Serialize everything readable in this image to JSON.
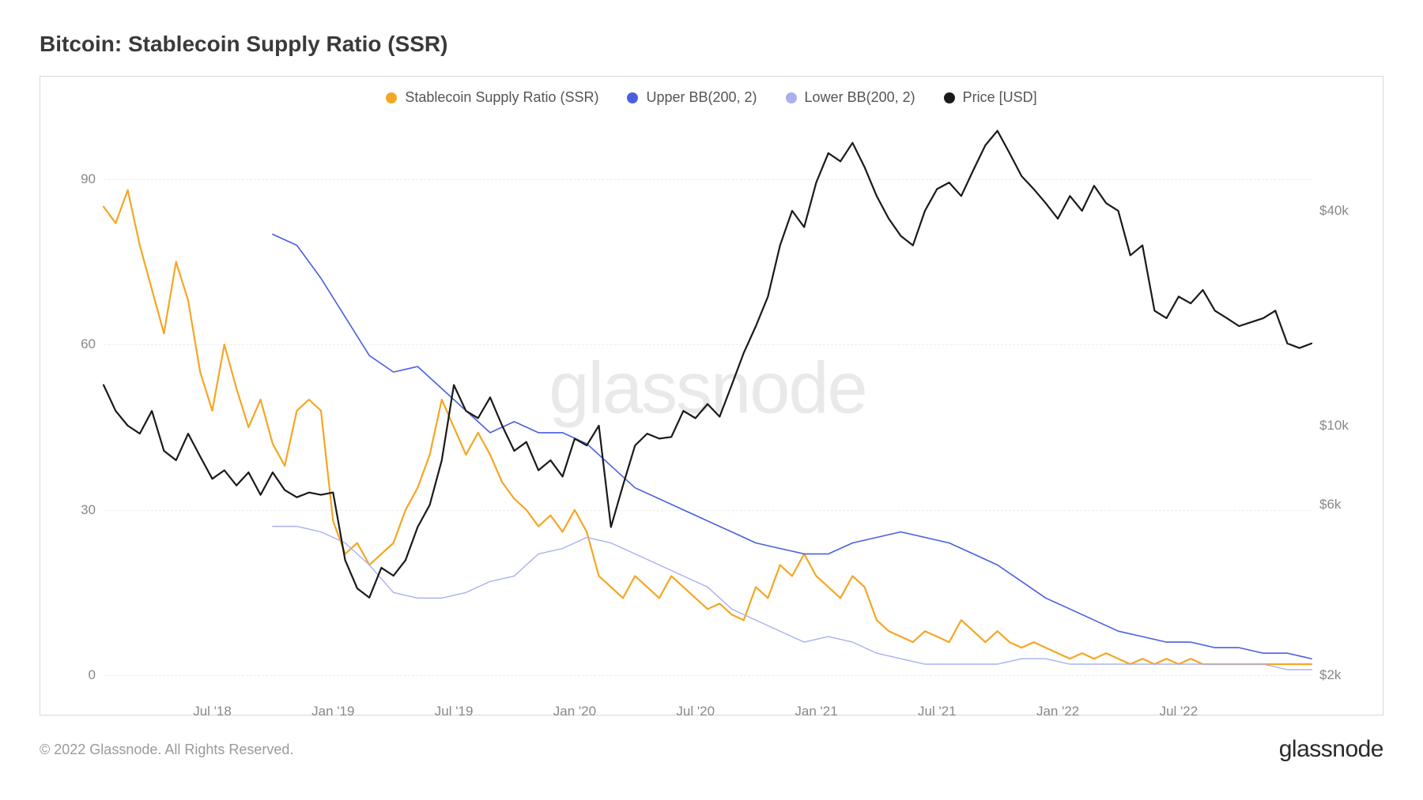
{
  "title": "Bitcoin: Stablecoin Supply Ratio (SSR)",
  "copyright": "© 2022 Glassnode. All Rights Reserved.",
  "brand": "glassnode",
  "watermark": "glassnode",
  "chart": {
    "type": "line",
    "background_color": "#ffffff",
    "border_color": "#d8d8d8",
    "grid_color": "#eeeeee",
    "title_fontsize": 28,
    "label_fontsize": 17,
    "legend_fontsize": 18,
    "legend_position": "top-center",
    "left_axis": {
      "label": "",
      "scale": "linear",
      "min": 0,
      "max": 100,
      "ticks": [
        0,
        30,
        60,
        90
      ],
      "tick_color": "#888888"
    },
    "right_axis": {
      "label": "",
      "scale": "log",
      "min": 2000,
      "max": 70000,
      "ticks": [
        2000,
        6000,
        10000,
        40000
      ],
      "tick_labels": [
        "$2k",
        "$6k",
        "$10k",
        "$40k"
      ],
      "tick_color": "#888888"
    },
    "x_axis": {
      "type": "time",
      "min": "2018-01",
      "max": "2022-12",
      "ticks": [
        "Jul '18",
        "Jan '19",
        "Jul '19",
        "Jan '20",
        "Jul '20",
        "Jan '21",
        "Jul '21",
        "Jan '22",
        "Jul '22"
      ],
      "tick_positions_pct": [
        9,
        19,
        29,
        39,
        49,
        59,
        69,
        79,
        89
      ],
      "tick_color": "#888888"
    },
    "series": [
      {
        "name": "Stablecoin Supply Ratio (SSR)",
        "axis": "left",
        "color": "#f5a623",
        "line_width": 2.2,
        "data": [
          [
            0,
            85
          ],
          [
            1,
            82
          ],
          [
            2,
            88
          ],
          [
            3,
            78
          ],
          [
            4,
            70
          ],
          [
            5,
            62
          ],
          [
            6,
            75
          ],
          [
            7,
            68
          ],
          [
            8,
            55
          ],
          [
            9,
            48
          ],
          [
            10,
            60
          ],
          [
            11,
            52
          ],
          [
            12,
            45
          ],
          [
            13,
            50
          ],
          [
            14,
            42
          ],
          [
            15,
            38
          ],
          [
            16,
            48
          ],
          [
            17,
            50
          ],
          [
            18,
            48
          ],
          [
            19,
            28
          ],
          [
            20,
            22
          ],
          [
            21,
            24
          ],
          [
            22,
            20
          ],
          [
            23,
            22
          ],
          [
            24,
            24
          ],
          [
            25,
            30
          ],
          [
            26,
            34
          ],
          [
            27,
            40
          ],
          [
            28,
            50
          ],
          [
            29,
            45
          ],
          [
            30,
            40
          ],
          [
            31,
            44
          ],
          [
            32,
            40
          ],
          [
            33,
            35
          ],
          [
            34,
            32
          ],
          [
            35,
            30
          ],
          [
            36,
            27
          ],
          [
            37,
            29
          ],
          [
            38,
            26
          ],
          [
            39,
            30
          ],
          [
            40,
            26
          ],
          [
            41,
            18
          ],
          [
            42,
            16
          ],
          [
            43,
            14
          ],
          [
            44,
            18
          ],
          [
            45,
            16
          ],
          [
            46,
            14
          ],
          [
            47,
            18
          ],
          [
            48,
            16
          ],
          [
            49,
            14
          ],
          [
            50,
            12
          ],
          [
            51,
            13
          ],
          [
            52,
            11
          ],
          [
            53,
            10
          ],
          [
            54,
            16
          ],
          [
            55,
            14
          ],
          [
            56,
            20
          ],
          [
            57,
            18
          ],
          [
            58,
            22
          ],
          [
            59,
            18
          ],
          [
            60,
            16
          ],
          [
            61,
            14
          ],
          [
            62,
            18
          ],
          [
            63,
            16
          ],
          [
            64,
            10
          ],
          [
            65,
            8
          ],
          [
            66,
            7
          ],
          [
            67,
            6
          ],
          [
            68,
            8
          ],
          [
            69,
            7
          ],
          [
            70,
            6
          ],
          [
            71,
            10
          ],
          [
            72,
            8
          ],
          [
            73,
            6
          ],
          [
            74,
            8
          ],
          [
            75,
            6
          ],
          [
            76,
            5
          ],
          [
            77,
            6
          ],
          [
            78,
            5
          ],
          [
            79,
            4
          ],
          [
            80,
            3
          ],
          [
            81,
            4
          ],
          [
            82,
            3
          ],
          [
            83,
            4
          ],
          [
            84,
            3
          ],
          [
            85,
            2
          ],
          [
            86,
            3
          ],
          [
            87,
            2
          ],
          [
            88,
            3
          ],
          [
            89,
            2
          ],
          [
            90,
            3
          ],
          [
            91,
            2
          ],
          [
            92,
            2
          ],
          [
            93,
            2
          ],
          [
            94,
            2
          ],
          [
            95,
            2
          ],
          [
            96,
            2
          ],
          [
            97,
            2
          ],
          [
            98,
            2
          ],
          [
            99,
            2
          ],
          [
            100,
            2
          ]
        ]
      },
      {
        "name": "Upper BB(200, 2)",
        "axis": "left",
        "color": "#4a5fe0",
        "line_width": 1.6,
        "data": [
          [
            14,
            80
          ],
          [
            16,
            78
          ],
          [
            18,
            72
          ],
          [
            20,
            65
          ],
          [
            22,
            58
          ],
          [
            24,
            55
          ],
          [
            26,
            56
          ],
          [
            28,
            52
          ],
          [
            30,
            48
          ],
          [
            32,
            44
          ],
          [
            34,
            46
          ],
          [
            36,
            44
          ],
          [
            38,
            44
          ],
          [
            40,
            42
          ],
          [
            42,
            38
          ],
          [
            44,
            34
          ],
          [
            46,
            32
          ],
          [
            48,
            30
          ],
          [
            50,
            28
          ],
          [
            52,
            26
          ],
          [
            54,
            24
          ],
          [
            56,
            23
          ],
          [
            58,
            22
          ],
          [
            60,
            22
          ],
          [
            62,
            24
          ],
          [
            64,
            25
          ],
          [
            66,
            26
          ],
          [
            68,
            25
          ],
          [
            70,
            24
          ],
          [
            72,
            22
          ],
          [
            74,
            20
          ],
          [
            76,
            17
          ],
          [
            78,
            14
          ],
          [
            80,
            12
          ],
          [
            82,
            10
          ],
          [
            84,
            8
          ],
          [
            86,
            7
          ],
          [
            88,
            6
          ],
          [
            90,
            6
          ],
          [
            92,
            5
          ],
          [
            94,
            5
          ],
          [
            96,
            4
          ],
          [
            98,
            4
          ],
          [
            100,
            3
          ]
        ]
      },
      {
        "name": "Lower BB(200, 2)",
        "axis": "left",
        "color": "#a8b0f0",
        "line_width": 1.4,
        "data": [
          [
            14,
            27
          ],
          [
            16,
            27
          ],
          [
            18,
            26
          ],
          [
            20,
            24
          ],
          [
            22,
            20
          ],
          [
            24,
            15
          ],
          [
            26,
            14
          ],
          [
            28,
            14
          ],
          [
            30,
            15
          ],
          [
            32,
            17
          ],
          [
            34,
            18
          ],
          [
            36,
            22
          ],
          [
            38,
            23
          ],
          [
            40,
            25
          ],
          [
            42,
            24
          ],
          [
            44,
            22
          ],
          [
            46,
            20
          ],
          [
            48,
            18
          ],
          [
            50,
            16
          ],
          [
            52,
            12
          ],
          [
            54,
            10
          ],
          [
            56,
            8
          ],
          [
            58,
            6
          ],
          [
            60,
            7
          ],
          [
            62,
            6
          ],
          [
            64,
            4
          ],
          [
            66,
            3
          ],
          [
            68,
            2
          ],
          [
            70,
            2
          ],
          [
            72,
            2
          ],
          [
            74,
            2
          ],
          [
            76,
            3
          ],
          [
            78,
            3
          ],
          [
            80,
            2
          ],
          [
            82,
            2
          ],
          [
            84,
            2
          ],
          [
            86,
            2
          ],
          [
            88,
            2
          ],
          [
            90,
            2
          ],
          [
            92,
            2
          ],
          [
            94,
            2
          ],
          [
            96,
            2
          ],
          [
            98,
            1
          ],
          [
            100,
            1
          ]
        ]
      },
      {
        "name": "Price [USD]",
        "axis": "right",
        "color": "#1a1a1a",
        "line_width": 2.2,
        "data": [
          [
            0,
            13000
          ],
          [
            1,
            11000
          ],
          [
            2,
            10000
          ],
          [
            3,
            9500
          ],
          [
            4,
            11000
          ],
          [
            5,
            8500
          ],
          [
            6,
            8000
          ],
          [
            7,
            9500
          ],
          [
            8,
            8200
          ],
          [
            9,
            7100
          ],
          [
            10,
            7500
          ],
          [
            11,
            6800
          ],
          [
            12,
            7400
          ],
          [
            13,
            6400
          ],
          [
            14,
            7400
          ],
          [
            15,
            6600
          ],
          [
            16,
            6300
          ],
          [
            17,
            6500
          ],
          [
            18,
            6400
          ],
          [
            19,
            6500
          ],
          [
            20,
            4200
          ],
          [
            21,
            3500
          ],
          [
            22,
            3300
          ],
          [
            23,
            4000
          ],
          [
            24,
            3800
          ],
          [
            25,
            4200
          ],
          [
            26,
            5200
          ],
          [
            27,
            6000
          ],
          [
            28,
            8000
          ],
          [
            29,
            13000
          ],
          [
            30,
            11000
          ],
          [
            31,
            10500
          ],
          [
            32,
            12000
          ],
          [
            33,
            10000
          ],
          [
            34,
            8500
          ],
          [
            35,
            9000
          ],
          [
            36,
            7500
          ],
          [
            37,
            8000
          ],
          [
            38,
            7200
          ],
          [
            39,
            9200
          ],
          [
            40,
            8800
          ],
          [
            41,
            10000
          ],
          [
            42,
            5200
          ],
          [
            43,
            6800
          ],
          [
            44,
            8800
          ],
          [
            45,
            9500
          ],
          [
            46,
            9200
          ],
          [
            47,
            9300
          ],
          [
            48,
            11000
          ],
          [
            49,
            10500
          ],
          [
            50,
            11500
          ],
          [
            51,
            10600
          ],
          [
            52,
            13000
          ],
          [
            53,
            16000
          ],
          [
            54,
            19000
          ],
          [
            55,
            23000
          ],
          [
            56,
            32000
          ],
          [
            57,
            40000
          ],
          [
            58,
            36000
          ],
          [
            59,
            48000
          ],
          [
            60,
            58000
          ],
          [
            61,
            55000
          ],
          [
            62,
            62000
          ],
          [
            63,
            53000
          ],
          [
            64,
            44000
          ],
          [
            65,
            38000
          ],
          [
            66,
            34000
          ],
          [
            67,
            32000
          ],
          [
            68,
            40000
          ],
          [
            69,
            46000
          ],
          [
            70,
            48000
          ],
          [
            71,
            44000
          ],
          [
            72,
            52000
          ],
          [
            73,
            61000
          ],
          [
            74,
            67000
          ],
          [
            75,
            58000
          ],
          [
            76,
            50000
          ],
          [
            77,
            46000
          ],
          [
            78,
            42000
          ],
          [
            79,
            38000
          ],
          [
            80,
            44000
          ],
          [
            81,
            40000
          ],
          [
            82,
            47000
          ],
          [
            83,
            42000
          ],
          [
            84,
            40000
          ],
          [
            85,
            30000
          ],
          [
            86,
            32000
          ],
          [
            87,
            21000
          ],
          [
            88,
            20000
          ],
          [
            89,
            23000
          ],
          [
            90,
            22000
          ],
          [
            91,
            24000
          ],
          [
            92,
            21000
          ],
          [
            93,
            20000
          ],
          [
            94,
            19000
          ],
          [
            95,
            19500
          ],
          [
            96,
            20000
          ],
          [
            97,
            21000
          ],
          [
            98,
            17000
          ],
          [
            99,
            16500
          ],
          [
            100,
            17000
          ]
        ]
      }
    ]
  }
}
